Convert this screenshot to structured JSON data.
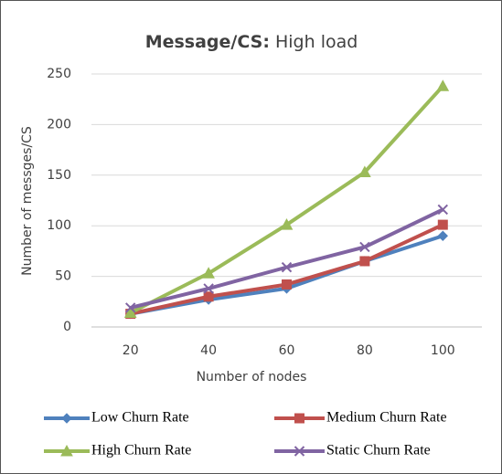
{
  "chart_data": {
    "type": "line",
    "title_parts": [
      "Message/CS:",
      "High load"
    ],
    "x_label": "Number of nodes",
    "y_label": "Number of messges/CS",
    "categories": [
      "20",
      "40",
      "60",
      "80",
      "100"
    ],
    "series": [
      {
        "name": "Low Churn Rate",
        "color": "#4f81bd",
        "marker": "diamond",
        "values": [
          13,
          27,
          38,
          65,
          90
        ]
      },
      {
        "name": "Medium Churn Rate",
        "color": "#c0504d",
        "marker": "square",
        "values": [
          13,
          30,
          42,
          65,
          101
        ]
      },
      {
        "name": "High Churn Rate",
        "color": "#9bbb59",
        "marker": "triangle",
        "values": [
          14,
          53,
          101,
          153,
          238
        ]
      },
      {
        "name": "Static Churn Rate",
        "color": "#8064a2",
        "marker": "x",
        "values": [
          19,
          38,
          59,
          79,
          116
        ]
      }
    ],
    "ylim": [
      0,
      250
    ],
    "yticks": [
      0,
      50,
      100,
      150,
      200,
      250
    ],
    "grid": true,
    "legend": "bottom"
  }
}
